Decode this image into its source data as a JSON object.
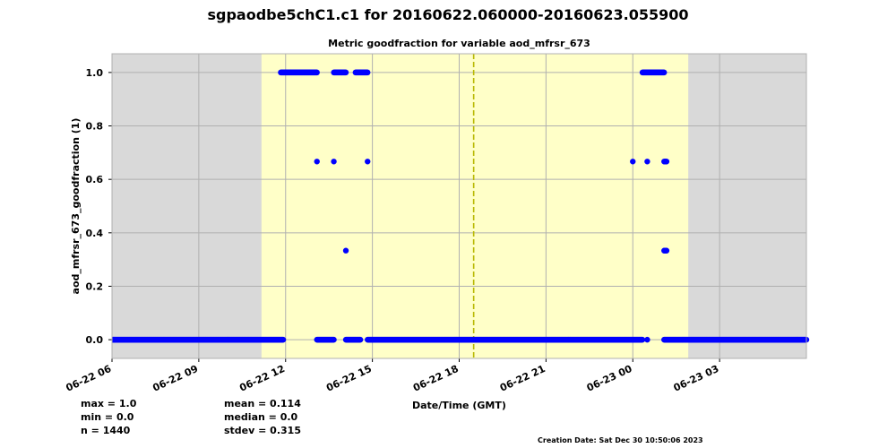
{
  "title": "sgpaodbe5chC1.c1 for 20160622.060000-20160623.055900",
  "chart_data": {
    "type": "scatter",
    "title": "Metric goodfraction for variable aod_mfrsr_673",
    "xlabel": "Date/Time (GMT)",
    "ylabel": "aod_mfrsr_673_goodfraction (1)",
    "xlim": [
      "2016-06-22 06:00",
      "2016-06-23 06:00"
    ],
    "ylim": [
      -0.07,
      1.07
    ],
    "x_ticks": [
      "06-22 06",
      "06-22 09",
      "06-22 12",
      "06-22 15",
      "06-22 18",
      "06-22 21",
      "06-23 00",
      "06-23 03"
    ],
    "y_ticks": [
      "0.0",
      "0.2",
      "0.4",
      "0.6",
      "0.8",
      "1.0"
    ],
    "grid": true,
    "daylight_region": [
      "2016-06-22 11:10",
      "2016-06-23 01:55"
    ],
    "solar_noon_line": "2016-06-22 18:30",
    "colors": {
      "points": "#0000ff",
      "daylight": "#ffffc8",
      "night": "#d9d9d9",
      "noon_line": "#b8b800",
      "grid": "#b0b0b0"
    },
    "series": [
      {
        "points": [
          {
            "x_range": [
              "2016-06-22 06:00",
              "2016-06-22 11:55"
            ],
            "y": 0.0
          },
          {
            "x_range": [
              "2016-06-22 11:50",
              "2016-06-22 13:05"
            ],
            "y": 1.0
          },
          {
            "x": "2016-06-22 13:05",
            "y": 0.6667
          },
          {
            "x_range": [
              "2016-06-22 13:05",
              "2016-06-22 13:40"
            ],
            "y": 0.0
          },
          {
            "x": "2016-06-22 13:40",
            "y": 0.6667
          },
          {
            "x_range": [
              "2016-06-22 13:40",
              "2016-06-22 14:05"
            ],
            "y": 1.0
          },
          {
            "x": "2016-06-22 14:05",
            "y": 0.3333
          },
          {
            "x_range": [
              "2016-06-22 14:05",
              "2016-06-22 14:35"
            ],
            "y": 0.0
          },
          {
            "x_range": [
              "2016-06-22 14:25",
              "2016-06-22 14:50"
            ],
            "y": 1.0
          },
          {
            "x": "2016-06-22 14:50",
            "y": 0.6667
          },
          {
            "x_range": [
              "2016-06-22 14:50",
              "2016-06-23 00:20"
            ],
            "y": 0.0
          },
          {
            "x": "2016-06-23 00:00",
            "y": 0.6667
          },
          {
            "x_range": [
              "2016-06-23 00:20",
              "2016-06-23 01:05"
            ],
            "y": 1.0
          },
          {
            "x": "2016-06-23 00:30",
            "y": 0.6667
          },
          {
            "x": "2016-06-23 00:30",
            "y": 0.0
          },
          {
            "x_range": [
              "2016-06-23 01:05",
              "2016-06-23 01:10"
            ],
            "y": 0.6667
          },
          {
            "x_range": [
              "2016-06-23 01:05",
              "2016-06-23 01:10"
            ],
            "y": 0.3333
          },
          {
            "x_range": [
              "2016-06-23 01:05",
              "2016-06-23 06:00"
            ],
            "y": 0.0
          }
        ]
      }
    ]
  },
  "stats": {
    "max": "max = 1.0",
    "min": "min = 0.0",
    "n": "n = 1440",
    "mean": "mean = 0.114",
    "median": "median = 0.0",
    "stdev": "stdev = 0.315"
  },
  "creation_date": "Creation Date: Sat Dec 30 10:50:06 2023"
}
